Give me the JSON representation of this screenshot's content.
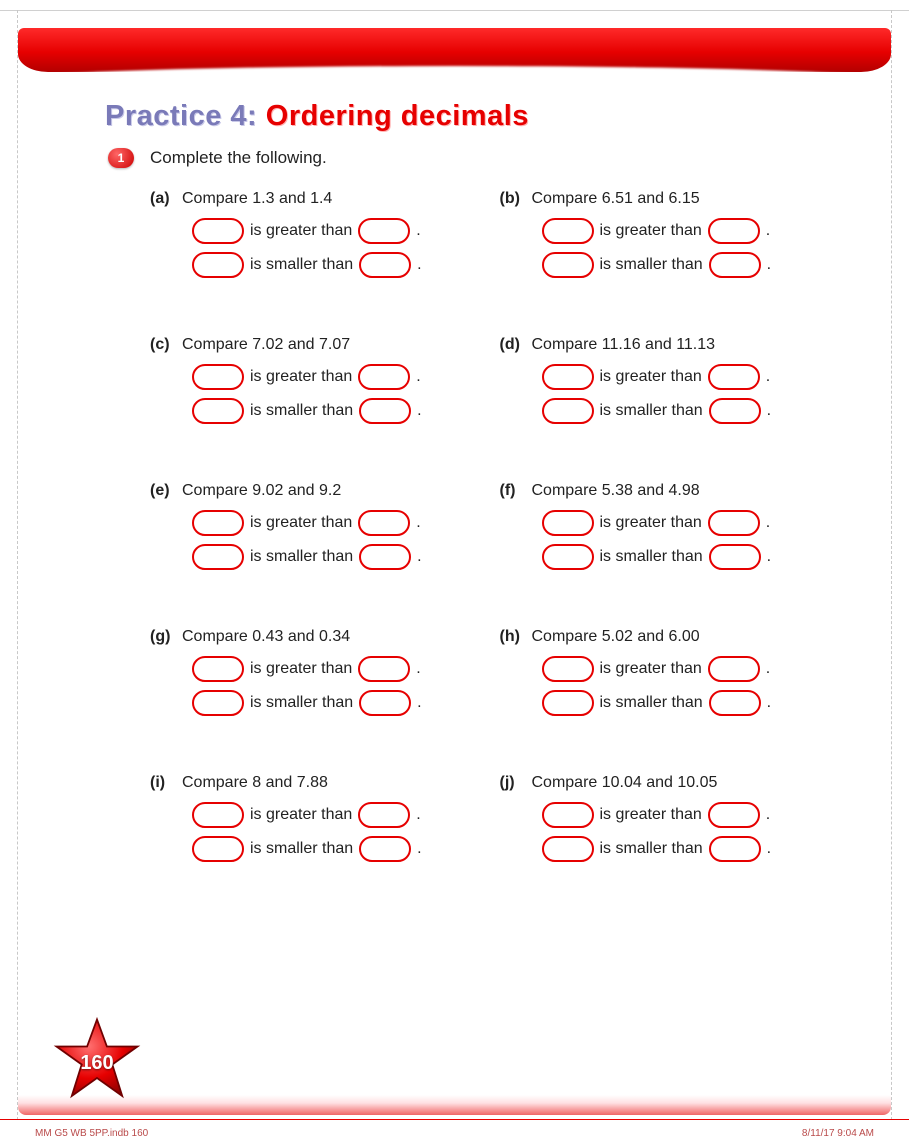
{
  "title_prefix": "Practice 4: ",
  "title_main": "Ordering decimals",
  "badge_number": "1",
  "instruction": "Complete the following.",
  "greater_text": "is greater than",
  "smaller_text": "is smaller than",
  "period": ".",
  "items": [
    {
      "label": "(a)",
      "prompt": "Compare 1.3 and 1.4"
    },
    {
      "label": "(b)",
      "prompt": "Compare 6.51 and 6.15"
    },
    {
      "label": "(c)",
      "prompt": "Compare 7.02 and 7.07"
    },
    {
      "label": "(d)",
      "prompt": "Compare 11.16 and 11.13"
    },
    {
      "label": "(e)",
      "prompt": "Compare 9.02 and 9.2"
    },
    {
      "label": "(f)",
      "prompt": "Compare 5.38 and 4.98"
    },
    {
      "label": "(g)",
      "prompt": "Compare 0.43 and 0.34"
    },
    {
      "label": "(h)",
      "prompt": "Compare 5.02 and 6.00"
    },
    {
      "label": "(i)",
      "prompt": "Compare 8 and 7.88"
    },
    {
      "label": "(j)",
      "prompt": "Compare 10.04 and 10.05"
    }
  ],
  "page_number": "160",
  "footer_left": "MM G5 WB 5PP.indb   160",
  "footer_right": "8/11/17   9:04 AM",
  "colors": {
    "accent_red": "#e60000",
    "title_purple": "#7a7ab8",
    "text": "#222222",
    "background": "#ffffff"
  }
}
